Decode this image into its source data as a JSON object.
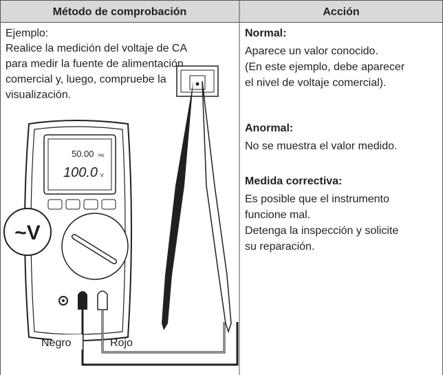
{
  "table": {
    "header": [
      "Método de comprobación",
      "Acción"
    ],
    "left": {
      "label": "Ejemplo:",
      "lines": [
        "Realice la medición del voltaje de CA",
        "para medir la fuente de alimentación",
        "comercial y, luego, compruebe la",
        "visualización."
      ]
    },
    "right": [
      {
        "heading": "Normal:",
        "lines": [
          "Aparece un valor conocido.",
          "(En este ejemplo, debe aparecer",
          "el nivel de voltaje comercial)."
        ]
      },
      {
        "heading": "Anormal:",
        "lines": [
          "No se muestra el valor medido."
        ]
      },
      {
        "heading": "Medida correctiva:",
        "lines": [
          "Es posible que el instrumento",
          "funcione mal.",
          "Detenga la inspección y solicite",
          "su reparación."
        ]
      }
    ]
  },
  "illustration": {
    "frequency": "50.00",
    "frequency_unit": "Hz",
    "voltage": "100.0",
    "voltage_unit": "v",
    "function": "~V",
    "black_lead": "Negro",
    "red_lead": "Rojo"
  }
}
